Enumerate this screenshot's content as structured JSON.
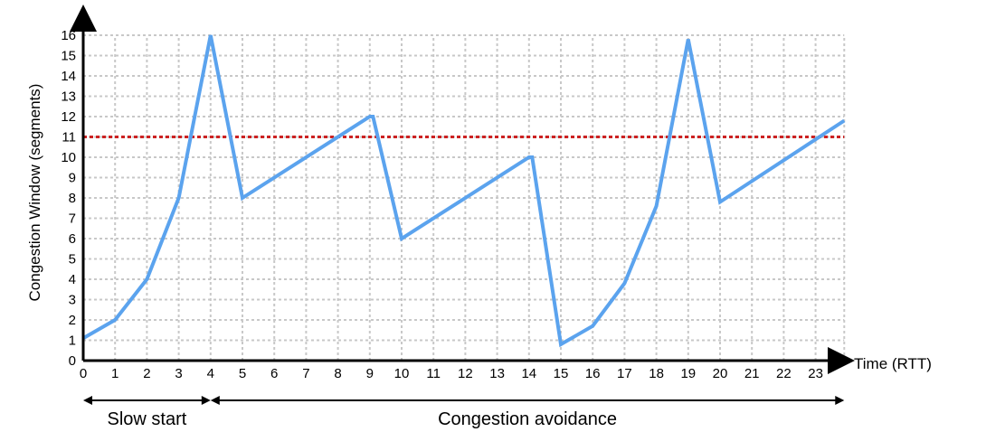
{
  "chart_data": {
    "type": "line",
    "xlabel": "Time (RTT)",
    "ylabel": "Congestion Window (segments)",
    "x_ticks": [
      "0",
      "1",
      "2",
      "3",
      "4",
      "5",
      "6",
      "7",
      "8",
      "9",
      "10",
      "11",
      "12",
      "13",
      "14",
      "15",
      "16",
      "17",
      "18",
      "19",
      "20",
      "21",
      "22",
      "23"
    ],
    "y_ticks": [
      "0",
      "1",
      "2",
      "3",
      "4",
      "5",
      "6",
      "7",
      "8",
      "9",
      "10",
      "11",
      "12",
      "13",
      "14",
      "15",
      "16"
    ],
    "xlim": [
      0,
      23.9
    ],
    "ylim": [
      0,
      16
    ],
    "grid": true,
    "series": [
      {
        "color": "#5ba3ee",
        "x": [
          0,
          1,
          2,
          3,
          4,
          5,
          9,
          9.1,
          10,
          14,
          14.1,
          15,
          16,
          17,
          18,
          19,
          20,
          23.9
        ],
        "y": [
          1.1,
          2,
          4,
          8,
          16,
          8,
          12,
          12,
          6,
          10,
          10,
          0.8,
          1.7,
          3.8,
          7.6,
          15.8,
          7.8,
          11.8
        ]
      }
    ],
    "threshold": {
      "y": 11,
      "color": "#cc2222",
      "style": "dotted"
    },
    "phases": [
      {
        "label": "Slow start",
        "from": 0,
        "to": 4
      },
      {
        "label": "Congestion avoidance",
        "from": 4,
        "to": 23.9
      }
    ]
  }
}
